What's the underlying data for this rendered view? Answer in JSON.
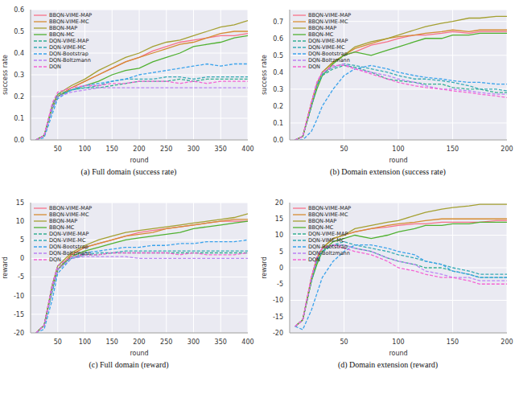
{
  "chart_data": [
    {
      "type": "line",
      "title": "(a) Full domain (success rate)",
      "x_label": "round",
      "y_label": "success rate",
      "grid": true,
      "legend": "upper left",
      "x": [
        10,
        25,
        40,
        50,
        75,
        100,
        125,
        150,
        175,
        200,
        225,
        250,
        275,
        300,
        325,
        350,
        375,
        400
      ],
      "xlim": [
        0,
        400
      ],
      "xticks": [
        50,
        100,
        150,
        200,
        250,
        300,
        350,
        400
      ],
      "ylim": [
        0,
        0.6
      ],
      "yticks": [
        {
          "value": 0,
          "label": "0.0"
        },
        0.1,
        0.2,
        0.3,
        0.4,
        0.5,
        0.6
      ],
      "series": [
        {
          "name": "BBQN-VIME-MAP",
          "color": "#f77189",
          "line_style": "solid",
          "values": [
            0,
            0.02,
            0.15,
            0.2,
            0.24,
            0.27,
            0.3,
            0.33,
            0.36,
            0.38,
            0.41,
            0.43,
            0.45,
            0.46,
            0.47,
            0.48,
            0.48,
            0.49
          ]
        },
        {
          "name": "BBQN-VIME-MC",
          "color": "#d58c32",
          "line_style": "solid",
          "values": [
            0,
            0.02,
            0.15,
            0.2,
            0.24,
            0.27,
            0.3,
            0.33,
            0.36,
            0.38,
            0.4,
            0.42,
            0.44,
            0.45,
            0.47,
            0.49,
            0.5,
            0.5
          ]
        },
        {
          "name": "BBQN-MAP",
          "color": "#a4a031",
          "line_style": "solid",
          "values": [
            0,
            0.02,
            0.16,
            0.21,
            0.25,
            0.28,
            0.32,
            0.35,
            0.38,
            0.4,
            0.43,
            0.45,
            0.46,
            0.48,
            0.5,
            0.52,
            0.53,
            0.55
          ]
        },
        {
          "name": "BBQN-MC",
          "color": "#50b131",
          "line_style": "solid",
          "values": [
            0,
            0.02,
            0.15,
            0.2,
            0.23,
            0.25,
            0.27,
            0.3,
            0.32,
            0.33,
            0.36,
            0.38,
            0.4,
            0.43,
            0.44,
            0.45,
            0.47,
            0.48
          ]
        },
        {
          "name": "DQN-VIME-MAP",
          "color": "#34ae91",
          "line_style": "dashed",
          "values": [
            0,
            0.02,
            0.16,
            0.21,
            0.23,
            0.24,
            0.24,
            0.25,
            0.26,
            0.27,
            0.27,
            0.27,
            0.28,
            0.27,
            0.28,
            0.28,
            0.28,
            0.28
          ]
        },
        {
          "name": "DQN-VIME-MC",
          "color": "#37abb5",
          "line_style": "dashed",
          "values": [
            0,
            0.02,
            0.14,
            0.2,
            0.23,
            0.24,
            0.25,
            0.27,
            0.28,
            0.28,
            0.28,
            0.29,
            0.29,
            0.28,
            0.29,
            0.29,
            0.29,
            0.29
          ]
        },
        {
          "name": "DQN-Bootstrap",
          "color": "#3ba3ec",
          "line_style": "dashed",
          "values": [
            0,
            0.01,
            0.12,
            0.19,
            0.23,
            0.25,
            0.26,
            0.27,
            0.28,
            0.3,
            0.31,
            0.32,
            0.33,
            0.34,
            0.35,
            0.34,
            0.35,
            0.35
          ]
        },
        {
          "name": "DQN-Boltzmann",
          "color": "#bb83f4",
          "line_style": "dashed",
          "values": [
            0,
            0.02,
            0.15,
            0.2,
            0.22,
            0.23,
            0.24,
            0.24,
            0.24,
            0.24,
            0.24,
            0.24,
            0.24,
            0.24,
            0.24,
            0.24,
            0.24,
            0.24
          ]
        },
        {
          "name": "DQN",
          "color": "#f564d4",
          "line_style": "dashed",
          "values": [
            0,
            0.02,
            0.17,
            0.22,
            0.24,
            0.25,
            0.25,
            0.26,
            0.26,
            0.27,
            0.27,
            0.27,
            0.26,
            0.27,
            0.26,
            0.27,
            0.27,
            0.27
          ]
        }
      ]
    },
    {
      "type": "line",
      "title": "(b) Domain extension (success rate)",
      "x_label": "round",
      "y_label": "success rate",
      "grid": true,
      "legend": "upper left",
      "x": [
        5,
        12,
        20,
        25,
        30,
        40,
        50,
        60,
        75,
        90,
        100,
        115,
        125,
        140,
        150,
        165,
        175,
        190,
        200
      ],
      "xlim": [
        0,
        200
      ],
      "xticks": [
        50,
        100,
        150,
        200
      ],
      "ylim": [
        0,
        0.77
      ],
      "yticks": [
        {
          "value": 0,
          "label": "0.0"
        },
        0.1,
        0.2,
        0.3,
        0.4,
        0.5,
        0.6,
        0.7
      ],
      "series": [
        {
          "name": "BBQN-VIME-MAP",
          "color": "#f77189",
          "line_style": "solid",
          "values": [
            0,
            0.02,
            0.22,
            0.33,
            0.4,
            0.46,
            0.5,
            0.52,
            0.56,
            0.58,
            0.6,
            0.62,
            0.62,
            0.63,
            0.64,
            0.63,
            0.64,
            0.64,
            0.64
          ]
        },
        {
          "name": "BBQN-VIME-MC",
          "color": "#d58c32",
          "line_style": "solid",
          "values": [
            0,
            0.02,
            0.22,
            0.33,
            0.4,
            0.46,
            0.5,
            0.54,
            0.57,
            0.6,
            0.61,
            0.62,
            0.63,
            0.64,
            0.65,
            0.64,
            0.65,
            0.65,
            0.65
          ]
        },
        {
          "name": "BBQN-MAP",
          "color": "#a4a031",
          "line_style": "solid",
          "values": [
            0,
            0.02,
            0.2,
            0.32,
            0.4,
            0.46,
            0.5,
            0.55,
            0.58,
            0.6,
            0.62,
            0.65,
            0.67,
            0.69,
            0.7,
            0.72,
            0.72,
            0.73,
            0.73
          ]
        },
        {
          "name": "BBQN-MC",
          "color": "#50b131",
          "line_style": "solid",
          "values": [
            0,
            0.02,
            0.2,
            0.3,
            0.38,
            0.45,
            0.5,
            0.52,
            0.5,
            0.53,
            0.55,
            0.58,
            0.6,
            0.6,
            0.62,
            0.62,
            0.63,
            0.63,
            0.63
          ]
        },
        {
          "name": "DQN-VIME-MAP",
          "color": "#34ae91",
          "line_style": "dashed",
          "values": [
            0,
            0.02,
            0.2,
            0.32,
            0.38,
            0.42,
            0.44,
            0.43,
            0.4,
            0.36,
            0.35,
            0.34,
            0.33,
            0.33,
            0.31,
            0.3,
            0.3,
            0.28,
            0.28
          ]
        },
        {
          "name": "DQN-VIME-MC",
          "color": "#37abb5",
          "line_style": "dashed",
          "values": [
            0,
            0.02,
            0.2,
            0.32,
            0.39,
            0.43,
            0.45,
            0.44,
            0.42,
            0.4,
            0.38,
            0.36,
            0.36,
            0.35,
            0.34,
            0.32,
            0.3,
            0.3,
            0.29
          ]
        },
        {
          "name": "DQN-Bootstrap",
          "color": "#3ba3ec",
          "line_style": "dashed",
          "values": [
            0,
            0,
            0.05,
            0.12,
            0.2,
            0.3,
            0.38,
            0.42,
            0.44,
            0.42,
            0.4,
            0.38,
            0.37,
            0.36,
            0.35,
            0.34,
            0.34,
            0.33,
            0.33
          ]
        },
        {
          "name": "DQN-Boltzmann",
          "color": "#bb83f4",
          "line_style": "dashed",
          "values": [
            0,
            0.02,
            0.22,
            0.34,
            0.4,
            0.43,
            0.45,
            0.42,
            0.4,
            0.38,
            0.36,
            0.34,
            0.32,
            0.3,
            0.3,
            0.29,
            0.28,
            0.27,
            0.27
          ]
        },
        {
          "name": "DQN",
          "color": "#f564d4",
          "line_style": "dashed",
          "values": [
            0,
            0.02,
            0.22,
            0.34,
            0.4,
            0.44,
            0.44,
            0.42,
            0.39,
            0.36,
            0.34,
            0.32,
            0.31,
            0.3,
            0.29,
            0.28,
            0.27,
            0.26,
            0.25
          ]
        }
      ]
    },
    {
      "type": "line",
      "title": "(c) Full domain (reward)",
      "x_label": "round",
      "y_label": "reward",
      "grid": true,
      "legend": "upper left",
      "x": [
        10,
        25,
        40,
        50,
        75,
        100,
        125,
        150,
        175,
        200,
        225,
        250,
        275,
        300,
        325,
        350,
        375,
        400
      ],
      "xlim": [
        0,
        400
      ],
      "xticks": [
        50,
        100,
        150,
        200,
        250,
        300,
        350,
        400
      ],
      "ylim": [
        -20,
        15
      ],
      "yticks": [
        -20,
        -15,
        -10,
        -5,
        0,
        5,
        10,
        15
      ],
      "series": [
        {
          "name": "BBQN-VIME-MAP",
          "color": "#f77189",
          "line_style": "solid",
          "values": [
            -20,
            -18,
            -8,
            -3,
            1,
            3,
            4,
            5,
            6,
            7,
            7.5,
            8,
            8.5,
            9,
            9.5,
            10,
            10,
            10
          ]
        },
        {
          "name": "BBQN-VIME-MC",
          "color": "#d58c32",
          "line_style": "solid",
          "values": [
            -20,
            -18,
            -8,
            -3,
            1,
            3,
            4,
            5,
            6,
            6.5,
            7,
            8,
            8.5,
            9,
            9.5,
            10,
            10.5,
            10.5
          ]
        },
        {
          "name": "BBQN-MAP",
          "color": "#a4a031",
          "line_style": "solid",
          "values": [
            -20,
            -18,
            -7,
            -2,
            1.5,
            3.5,
            5,
            6,
            7,
            7.5,
            8,
            8.5,
            9,
            9.5,
            10,
            10.5,
            11,
            12
          ]
        },
        {
          "name": "BBQN-MC",
          "color": "#50b131",
          "line_style": "solid",
          "values": [
            -20,
            -18,
            -8,
            -3,
            0.5,
            2,
            3,
            4,
            5,
            5.5,
            6,
            6.5,
            7,
            8,
            8.5,
            9,
            9.5,
            10
          ]
        },
        {
          "name": "DQN-VIME-MAP",
          "color": "#34ae91",
          "line_style": "dashed",
          "values": [
            -20,
            -18,
            -7,
            -2,
            0,
            1,
            1,
            1.5,
            1.5,
            1.5,
            1.5,
            1.5,
            1.5,
            1.5,
            1.5,
            1.5,
            1.5,
            1.5
          ]
        },
        {
          "name": "DQN-VIME-MC",
          "color": "#37abb5",
          "line_style": "dashed",
          "values": [
            -20,
            -18,
            -9,
            -3,
            0,
            1,
            1.5,
            1.5,
            2,
            2,
            2,
            2,
            2,
            2,
            2,
            2,
            2,
            2
          ]
        },
        {
          "name": "DQN-Bootstrap",
          "color": "#3ba3ec",
          "line_style": "dashed",
          "values": [
            -20,
            -19,
            -11,
            -4,
            0,
            1.5,
            2,
            2.5,
            3,
            3,
            3.5,
            3.5,
            4,
            4,
            4.5,
            4.5,
            4.5,
            5
          ]
        },
        {
          "name": "DQN-Boltzmann",
          "color": "#bb83f4",
          "line_style": "dashed",
          "values": [
            -20,
            -18,
            -8,
            -3,
            0,
            0.5,
            0.5,
            0.5,
            0.5,
            0,
            0,
            0,
            0,
            0,
            0,
            0,
            0,
            0
          ]
        },
        {
          "name": "DQN",
          "color": "#f564d4",
          "line_style": "dashed",
          "values": [
            -20,
            -18,
            -7,
            -2,
            0.5,
            1,
            1,
            1.5,
            1.5,
            1.5,
            1.5,
            1.5,
            1,
            1.5,
            1,
            1,
            1,
            1.5
          ]
        }
      ]
    },
    {
      "type": "line",
      "title": "(d) Domain extension (reward)",
      "x_label": "round",
      "y_label": "reward",
      "grid": true,
      "legend": "upper left",
      "x": [
        5,
        12,
        20,
        25,
        30,
        40,
        50,
        60,
        75,
        90,
        100,
        115,
        125,
        140,
        150,
        165,
        175,
        190,
        200
      ],
      "xlim": [
        0,
        200
      ],
      "xticks": [
        50,
        100,
        150,
        200
      ],
      "ylim": [
        -20,
        20
      ],
      "yticks": [
        -20,
        -15,
        -10,
        -5,
        0,
        5,
        10,
        15,
        20
      ],
      "series": [
        {
          "name": "BBQN-VIME-MAP",
          "color": "#f77189",
          "line_style": "solid",
          "values": [
            -18,
            -16,
            -3,
            3,
            6,
            9,
            10,
            11,
            12,
            12.5,
            13,
            13.5,
            13.5,
            14,
            14,
            14,
            14,
            14.5,
            14.5
          ]
        },
        {
          "name": "BBQN-VIME-MC",
          "color": "#d58c32",
          "line_style": "solid",
          "values": [
            -18,
            -16,
            -3,
            3,
            6,
            9,
            10,
            11,
            12,
            13,
            13.5,
            14,
            14.5,
            15,
            15,
            15,
            15,
            15,
            15
          ]
        },
        {
          "name": "BBQN-MAP",
          "color": "#a4a031",
          "line_style": "solid",
          "values": [
            -18,
            -16,
            -4,
            2,
            6,
            9,
            10,
            12,
            13,
            14,
            14.5,
            16,
            17,
            18,
            18.5,
            19,
            19.5,
            19.5,
            19.5
          ]
        },
        {
          "name": "BBQN-MC",
          "color": "#50b131",
          "line_style": "solid",
          "values": [
            -18,
            -16,
            -4,
            1,
            5,
            8,
            9,
            10,
            9,
            10,
            11,
            12,
            13,
            13,
            13.5,
            13.5,
            14,
            14,
            14
          ]
        },
        {
          "name": "DQN-VIME-MAP",
          "color": "#34ae91",
          "line_style": "dashed",
          "values": [
            -18,
            -16,
            -4,
            2,
            5,
            7,
            7,
            6,
            5,
            3,
            2,
            1,
            0,
            0,
            -1,
            -2,
            -3,
            -3,
            -3
          ]
        },
        {
          "name": "DQN-VIME-MC",
          "color": "#37abb5",
          "line_style": "dashed",
          "values": [
            -18,
            -16,
            -4,
            2,
            5,
            7,
            8,
            7,
            6,
            5,
            4,
            3,
            2,
            1,
            0,
            -1,
            -2,
            -2,
            -2
          ]
        },
        {
          "name": "DQN-Bootstrap",
          "color": "#3ba3ec",
          "line_style": "dashed",
          "values": [
            -18,
            -19,
            -13,
            -8,
            -3,
            2,
            5,
            7,
            7,
            6,
            5,
            4,
            2,
            1,
            -1,
            -2,
            -3,
            -3,
            -3
          ]
        },
        {
          "name": "DQN-Boltzmann",
          "color": "#bb83f4",
          "line_style": "dashed",
          "values": [
            -18,
            -16,
            -3,
            3,
            6,
            7,
            7,
            6,
            5,
            3,
            2,
            1,
            -1,
            -2,
            -3,
            -3,
            -4,
            -4,
            -4
          ]
        },
        {
          "name": "DQN",
          "color": "#f564d4",
          "line_style": "dashed",
          "values": [
            -18,
            -16,
            -3,
            3,
            6,
            7,
            6,
            5,
            4,
            2,
            0,
            -1,
            -2,
            -3,
            -3,
            -4,
            -5,
            -5,
            -5
          ]
        }
      ]
    }
  ]
}
